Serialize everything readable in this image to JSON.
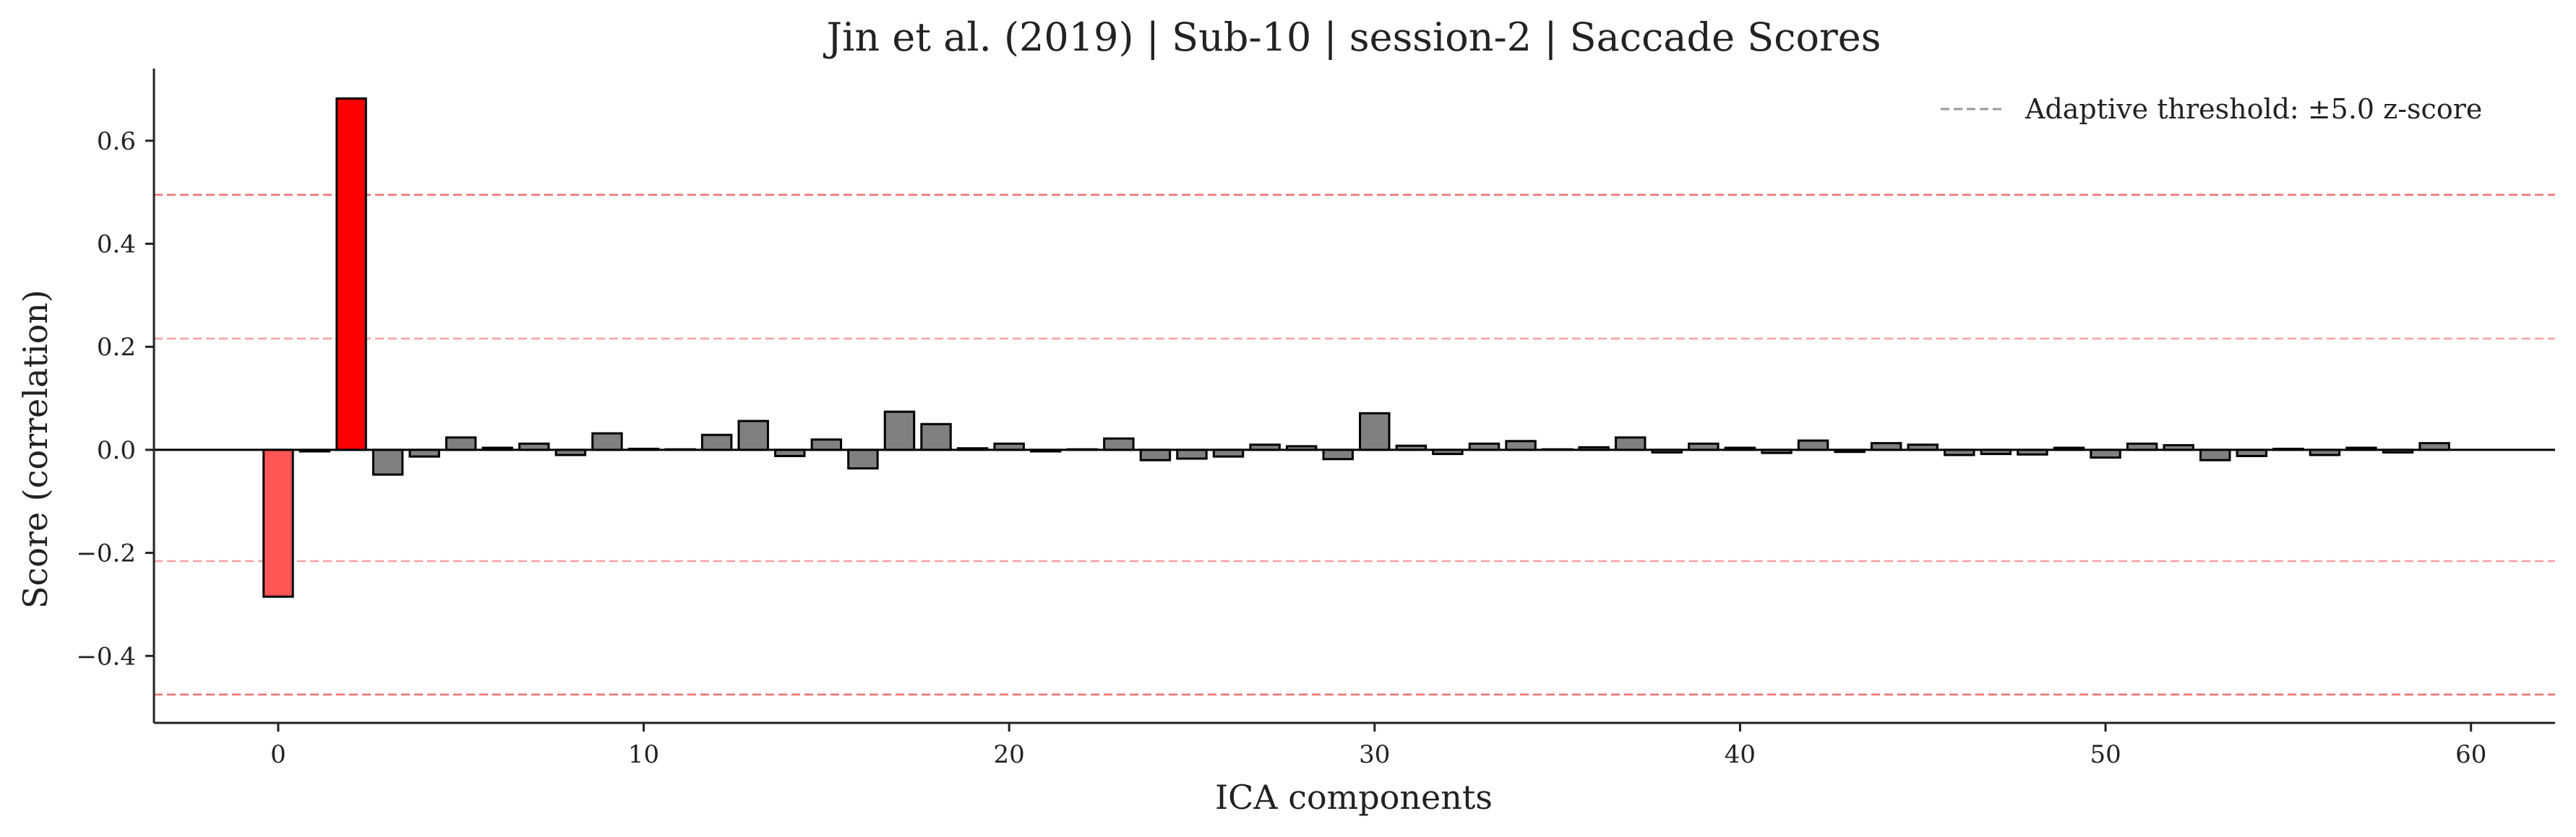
{
  "chart_data": {
    "type": "bar",
    "title": "Jin et al. (2019) | Sub-10 | session-2 | Saccade Scores",
    "xlabel": "ICA components",
    "ylabel": "Score (correlation)",
    "xlim": [
      -3.4,
      62.3
    ],
    "ylim": [
      -0.53,
      0.74
    ],
    "xticks": [
      0,
      10,
      20,
      30,
      40,
      50,
      60
    ],
    "xtick_labels": [
      "0",
      "10",
      "20",
      "30",
      "40",
      "50",
      "60"
    ],
    "yticks": [
      -0.4,
      -0.2,
      0.0,
      0.2,
      0.4,
      0.6
    ],
    "ytick_labels": [
      "−0.4",
      "−0.2",
      "0.0",
      "0.2",
      "0.4",
      "0.6"
    ],
    "grid": false,
    "legend": {
      "placement": "top-right",
      "entries": [
        "Adaptive threshold: ±5.0 z-score"
      ]
    },
    "thresholds": [
      {
        "value": 0.495,
        "style": "dashed",
        "color": "#f07070"
      },
      {
        "value": 0.216,
        "style": "dashed",
        "color": "#f5a0a0"
      },
      {
        "value": -0.216,
        "style": "dashed",
        "color": "#f5a0a0"
      },
      {
        "value": -0.475,
        "style": "dashed",
        "color": "#f07070"
      }
    ],
    "colors": {
      "normal": "#808080",
      "flagged_strong": "#ff0000",
      "flagged_moderate": "#ff5555",
      "edge": "#000000",
      "legend_line": "#9a9a9a"
    },
    "x": [
      0,
      1,
      2,
      3,
      4,
      5,
      6,
      7,
      8,
      9,
      10,
      11,
      12,
      13,
      14,
      15,
      16,
      17,
      18,
      19,
      20,
      21,
      22,
      23,
      24,
      25,
      26,
      27,
      28,
      29,
      30,
      31,
      32,
      33,
      34,
      35,
      36,
      37,
      38,
      39,
      40,
      41,
      42,
      43,
      44,
      45,
      46,
      47,
      48,
      49,
      50,
      51,
      52,
      53,
      54,
      55,
      56,
      57,
      58,
      59
    ],
    "values": [
      -0.285,
      -0.003,
      0.682,
      -0.048,
      -0.013,
      0.024,
      0.004,
      0.012,
      -0.01,
      0.032,
      0.002,
      0.001,
      0.029,
      0.056,
      -0.012,
      0.02,
      -0.036,
      0.074,
      0.05,
      0.003,
      0.012,
      -0.003,
      0.001,
      0.022,
      -0.02,
      -0.017,
      -0.013,
      0.01,
      0.007,
      -0.018,
      0.071,
      0.008,
      -0.008,
      0.012,
      0.017,
      0.001,
      0.005,
      0.024,
      -0.005,
      0.012,
      0.004,
      -0.006,
      0.018,
      -0.004,
      0.013,
      0.01,
      -0.01,
      -0.008,
      -0.009,
      0.004,
      -0.015,
      0.012,
      0.009,
      -0.02,
      -0.012,
      0.002,
      -0.01,
      0.004,
      -0.005,
      0.013
    ],
    "flagged": {
      "0": "moderate",
      "2": "strong"
    }
  }
}
